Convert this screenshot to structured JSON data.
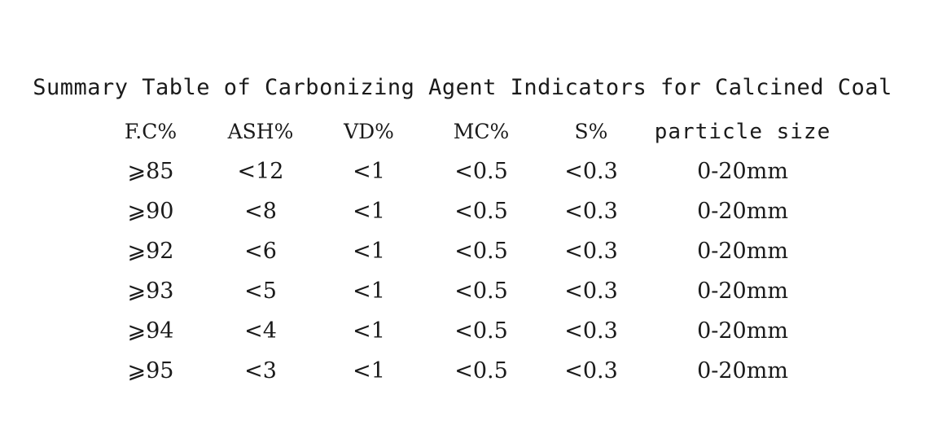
{
  "title": "Summary Table of Carbonizing Agent Indicators for Calcined Coal",
  "table": {
    "headers": [
      "F.C%",
      "ASH%",
      "VD%",
      "MC%",
      "S%",
      "particle size"
    ],
    "rows": [
      [
        "⩾85",
        "<12",
        "<1",
        "<0.5",
        "<0.3",
        "0-20mm"
      ],
      [
        "⩾90",
        "<8",
        "<1",
        "<0.5",
        "<0.3",
        "0-20mm"
      ],
      [
        "⩾92",
        "<6",
        "<1",
        "<0.5",
        "<0.3",
        "0-20mm"
      ],
      [
        "⩾93",
        "<5",
        "<1",
        "<0.5",
        "<0.3",
        "0-20mm"
      ],
      [
        "⩾94",
        "<4",
        "<1",
        "<0.5",
        "<0.3",
        "0-20mm"
      ],
      [
        "⩾95",
        "<3",
        "<1",
        "<0.5",
        "<0.3",
        "0-20mm"
      ]
    ]
  }
}
